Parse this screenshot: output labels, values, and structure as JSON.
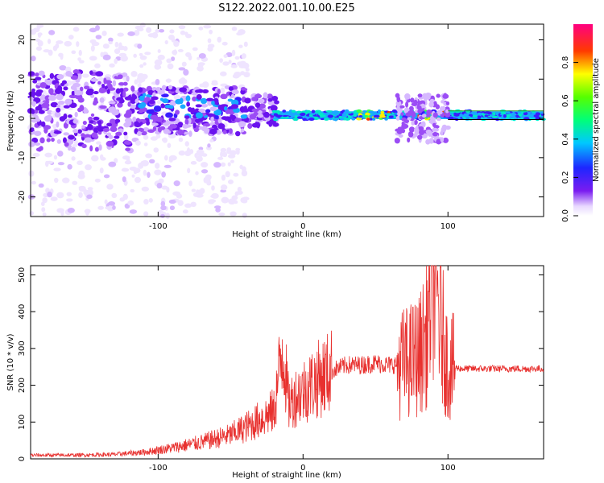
{
  "title": "S122.2022.001.10.00.E25",
  "colors": {
    "signal": "#e8312f",
    "band": "#2a9a2a",
    "axis": "#000000"
  },
  "chart_data": [
    {
      "type": "heatmap",
      "name": "spectrogram",
      "xlabel": "Height of straight line (km)",
      "ylabel": "Frequency (Hz)",
      "xlim": [
        -188,
        166
      ],
      "ylim": [
        -25,
        24
      ],
      "xticks": [
        -100,
        0,
        100
      ],
      "yticks": [
        -20,
        -10,
        0,
        10,
        20
      ],
      "colorbar": {
        "label": "Normalized spectral amplitude",
        "range": [
          0,
          1
        ],
        "ticks": [
          0.0,
          0.2,
          0.4,
          0.6,
          0.8
        ],
        "colormap": "rainbow (white-violet-blue-cyan-green-yellow-red-magenta)"
      },
      "description_of_trend": "broad low-amplitude noise at large negative heights, concentrated energy near 0-5 Hz between -120 and -40 km, narrow line near 0-1 Hz from about -20 km onward with peaks near 50 and 90 km"
    },
    {
      "type": "line",
      "name": "snr",
      "xlabel": "Height of straight line (km)",
      "ylabel": "SNR (10 * v/v)",
      "xlim": [
        -188,
        166
      ],
      "ylim": [
        0,
        525
      ],
      "xticks": [
        -100,
        0,
        100
      ],
      "yticks": [
        0,
        100,
        200,
        300,
        400,
        500
      ],
      "series": [
        {
          "color": "#e8312f",
          "x": [
            -188,
            -160,
            -130,
            -110,
            -90,
            -70,
            -50,
            -35,
            -20,
            -14,
            -10,
            -5,
            0,
            10,
            20,
            30,
            40,
            50,
            60,
            70,
            80,
            85,
            90,
            95,
            100,
            110,
            130,
            150,
            166
          ],
          "y": [
            10,
            10,
            12,
            18,
            30,
            45,
            65,
            95,
            130,
            310,
            150,
            170,
            185,
            215,
            240,
            255,
            255,
            260,
            255,
            260,
            280,
            330,
            520,
            360,
            250,
            245,
            245,
            245,
            245
          ]
        }
      ]
    }
  ]
}
